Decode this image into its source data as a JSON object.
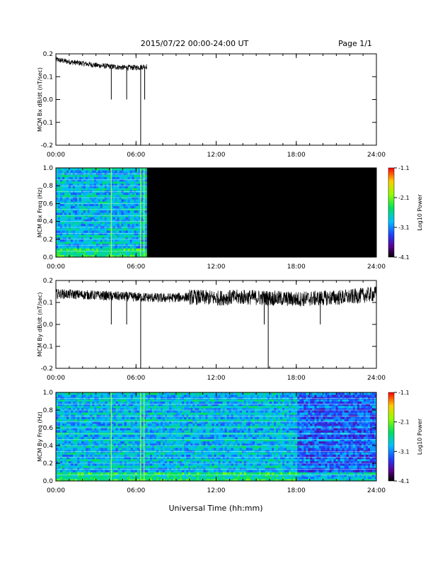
{
  "header": {
    "date_range": "2015/07/22  00:00-24:00 UT",
    "page": "Page 1/1"
  },
  "xlabel": "Universal Time (hh:mm)",
  "colorbar": {
    "label": "Log10 Power",
    "ticks": [
      "-1.1",
      "-2.1",
      "-3.1",
      "-4.1"
    ]
  },
  "chart_data": [
    {
      "type": "line",
      "ylabel": "MCM Bx dB/dt (nT/sec)",
      "xlim": [
        0,
        24
      ],
      "ylim": [
        -0.2,
        0.2
      ],
      "x_ticks": [
        "00:00",
        "06:00",
        "12:00",
        "18:00",
        "24:00"
      ],
      "y_ticks": [
        "0.2",
        "0.1",
        "0.0",
        "-0.1",
        "-0.2"
      ],
      "series": [
        {
          "x": [
            0,
            1,
            2,
            3,
            4,
            5,
            6,
            6.8
          ],
          "y": [
            0.175,
            0.165,
            0.158,
            0.15,
            0.145,
            0.14,
            0.14,
            0.145
          ]
        }
      ],
      "spikes": [
        {
          "x": 4.15,
          "y": 0.0
        },
        {
          "x": 5.3,
          "y": 0.0
        },
        {
          "x": 6.35,
          "y": -0.2
        },
        {
          "x": 6.65,
          "y": 0.0
        }
      ],
      "data_end_hour": 6.8
    },
    {
      "type": "heatmap",
      "ylabel": "MCM Bx Freq (Hz)",
      "xlim": [
        0,
        24
      ],
      "ylim": [
        0,
        1.0
      ],
      "x_ticks": [
        "00:00",
        "06:00",
        "12:00",
        "18:00",
        "24:00"
      ],
      "y_ticks": [
        "1.0",
        "0.8",
        "0.6",
        "0.4",
        "0.2",
        "0.0"
      ],
      "colorbar_range": [
        -4.1,
        -1.1
      ],
      "data_end_hour": 6.8
    },
    {
      "type": "line",
      "ylabel": "MCM By dB/dt (nT/sec)",
      "xlim": [
        0,
        24
      ],
      "ylim": [
        -0.2,
        0.2
      ],
      "x_ticks": [
        "00:00",
        "06:00",
        "12:00",
        "18:00",
        "24:00"
      ],
      "y_ticks": [
        "0.2",
        "0.1",
        "0.0",
        "-0.1",
        "-0.2"
      ],
      "series": [
        {
          "x": [
            0,
            2,
            4,
            6,
            8,
            10,
            12,
            14,
            16,
            18,
            20,
            22,
            24
          ],
          "y": [
            0.14,
            0.135,
            0.13,
            0.125,
            0.12,
            0.125,
            0.12,
            0.125,
            0.12,
            0.115,
            0.12,
            0.125,
            0.14
          ]
        }
      ],
      "spikes": [
        {
          "x": 4.15,
          "y": 0.0
        },
        {
          "x": 5.3,
          "y": 0.0
        },
        {
          "x": 6.35,
          "y": -0.2
        },
        {
          "x": 15.6,
          "y": 0.0
        },
        {
          "x": 15.9,
          "y": -0.2
        },
        {
          "x": 19.8,
          "y": 0.0
        }
      ],
      "data_end_hour": 24
    },
    {
      "type": "heatmap",
      "ylabel": "MCM By Freq (Hz)",
      "xlim": [
        0,
        24
      ],
      "ylim": [
        0,
        1.0
      ],
      "x_ticks": [
        "00:00",
        "06:00",
        "12:00",
        "18:00",
        "24:00"
      ],
      "y_ticks": [
        "1.0",
        "0.8",
        "0.6",
        "0.4",
        "0.2",
        "0.0"
      ],
      "colorbar_range": [
        -4.1,
        -1.1
      ],
      "data_end_hour": 24
    }
  ]
}
